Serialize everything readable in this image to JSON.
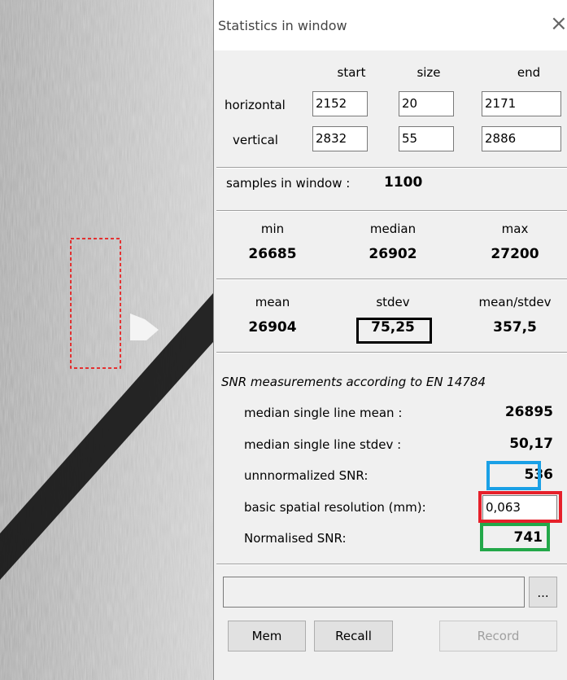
{
  "window": {
    "title": "Statistics in window",
    "close": "×"
  },
  "grid": {
    "columns": [
      "start",
      "size",
      "end"
    ],
    "rows": [
      {
        "label": "horizontal",
        "values": [
          "2152",
          "20",
          "2171"
        ]
      },
      {
        "label": "vertical",
        "values": [
          "2832",
          "55",
          "2886"
        ]
      }
    ]
  },
  "samples": {
    "label": "samples in window :",
    "value": "1100"
  },
  "stats1": [
    {
      "label": "min",
      "value": "26685"
    },
    {
      "label": "median",
      "value": "26902"
    },
    {
      "label": "max",
      "value": "27200"
    }
  ],
  "stats2": [
    {
      "label": "mean",
      "value": "26904"
    },
    {
      "label": "stdev",
      "value": "75,25"
    },
    {
      "label": "mean/stdev",
      "value": "357,5"
    }
  ],
  "snr": {
    "heading": "SNR measurements according to EN 14784",
    "rows": [
      {
        "label": "median single line mean :",
        "value": "26895"
      },
      {
        "label": "median single line stdev :",
        "value": "50,17"
      },
      {
        "label": "unnnormalized SNR:",
        "value": "536"
      },
      {
        "label": "basic spatial resolution (mm):",
        "value": "0,063"
      },
      {
        "label": "Normalised SNR:",
        "value": "741"
      }
    ]
  },
  "buttons": {
    "browse": "...",
    "mem": "Mem",
    "recall": "Recall",
    "record": "Record"
  }
}
